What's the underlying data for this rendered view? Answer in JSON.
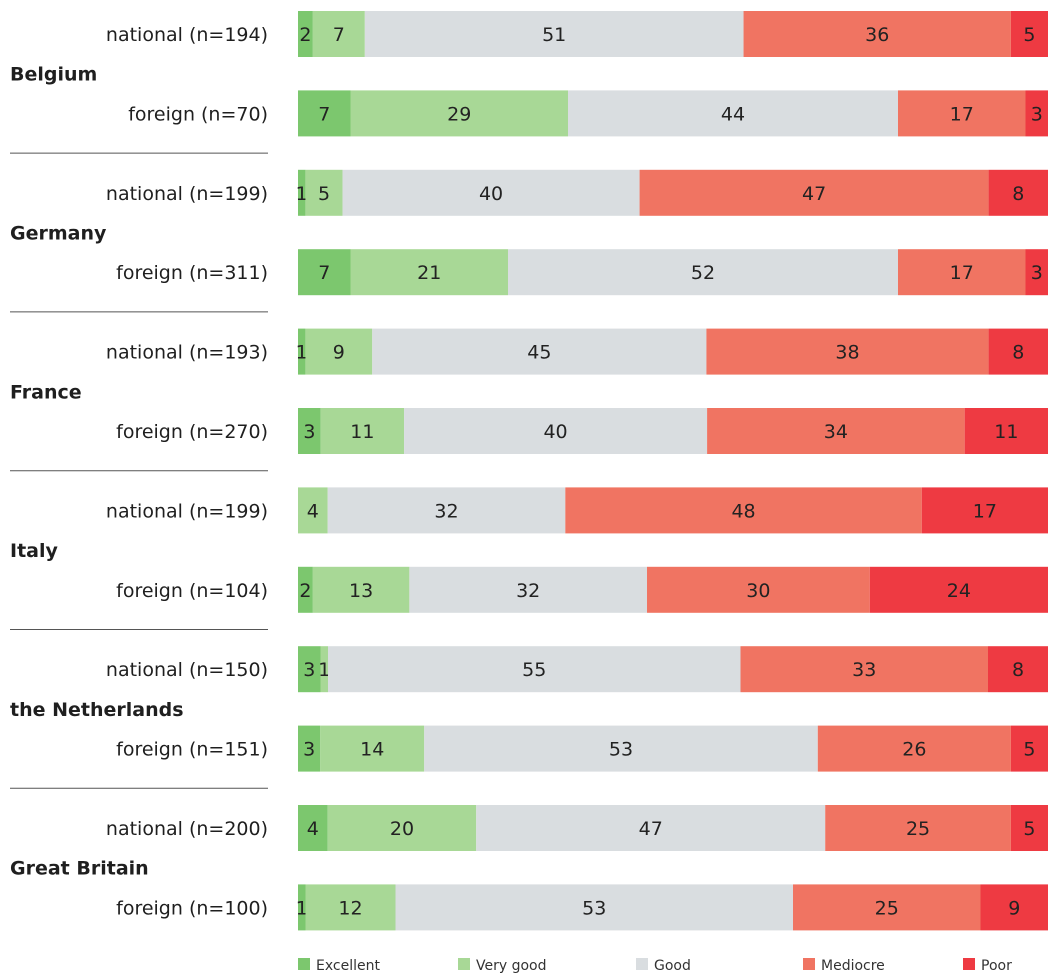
{
  "chart_data": {
    "type": "bar",
    "orientation": "horizontal",
    "stacked": true,
    "normalized_percent": true,
    "colors": {
      "Excellent": "#7cc76e",
      "Very good": "#a8d896",
      "Good": "#d9dde0",
      "Mediocre": "#f07462",
      "Poor": "#ee3a42"
    },
    "categories_order": [
      "Excellent",
      "Very good",
      "Good",
      "Mediocre",
      "Poor"
    ],
    "groups": [
      {
        "country": "Belgium",
        "rows": [
          {
            "label": "national (n=194)",
            "values": [
              2,
              7,
              51,
              36,
              5
            ]
          },
          {
            "label": "foreign (n=70)",
            "values": [
              7,
              29,
              44,
              17,
              3
            ]
          }
        ]
      },
      {
        "country": "Germany",
        "rows": [
          {
            "label": "national (n=199)",
            "values": [
              1,
              5,
              40,
              47,
              8
            ]
          },
          {
            "label": "foreign (n=311)",
            "values": [
              7,
              21,
              52,
              17,
              3
            ]
          }
        ]
      },
      {
        "country": "France",
        "rows": [
          {
            "label": "national (n=193)",
            "values": [
              1,
              9,
              45,
              38,
              8
            ]
          },
          {
            "label": "foreign (n=270)",
            "values": [
              3,
              11,
              40,
              34,
              11
            ]
          }
        ]
      },
      {
        "country": "Italy",
        "rows": [
          {
            "label": "national (n=199)",
            "values": [
              0,
              4,
              32,
              48,
              17
            ]
          },
          {
            "label": "foreign (n=104)",
            "values": [
              2,
              13,
              32,
              30,
              24
            ]
          }
        ]
      },
      {
        "country": "the Netherlands",
        "rows": [
          {
            "label": "national (n=150)",
            "values": [
              3,
              1,
              55,
              33,
              8
            ]
          },
          {
            "label": "foreign (n=151)",
            "values": [
              3,
              14,
              53,
              26,
              5
            ]
          }
        ]
      },
      {
        "country": "Great Britain",
        "rows": [
          {
            "label": "national (n=200)",
            "values": [
              4,
              20,
              47,
              25,
              5
            ]
          },
          {
            "label": "foreign (n=100)",
            "values": [
              1,
              12,
              53,
              25,
              9
            ]
          }
        ]
      }
    ],
    "legend": {
      "position": "bottom",
      "items": [
        "Excellent",
        "Very good",
        "Good",
        "Mediocre",
        "Poor"
      ]
    }
  }
}
